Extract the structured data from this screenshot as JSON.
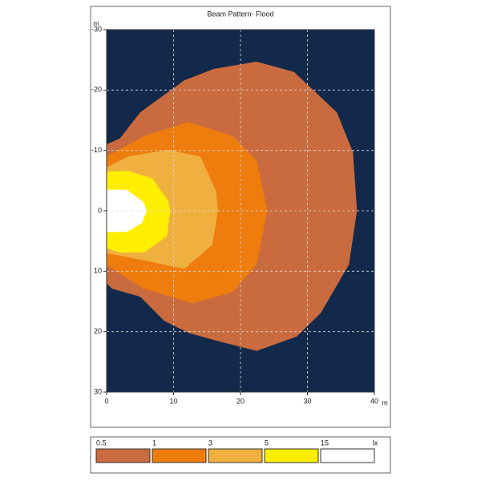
{
  "chart_data": {
    "type": "contour",
    "title": "Beam Pattern- Flood",
    "x_label": "m",
    "y_label": "m",
    "xlim": [
      0,
      40
    ],
    "ylim": [
      30,
      -30
    ],
    "xticks": [
      0,
      10,
      20,
      30,
      40
    ],
    "yticks": [
      -30,
      -20,
      -10,
      0,
      10,
      20,
      30
    ],
    "grid": true,
    "background": "#13294b",
    "legend_unit": "lx",
    "levels": [
      {
        "value": 0.5,
        "color": "#c96b3e",
        "x": [
          0,
          2,
          5,
          11.6,
          16,
          22.4,
          28,
          34.4,
          36.8,
          37.4,
          36.2,
          32,
          28.4,
          22.4,
          16.4,
          12.2,
          8.6,
          5,
          0.8,
          0
        ],
        "y": [
          -11,
          -12,
          -16.3,
          -21.6,
          -23.5,
          -24.7,
          -23,
          -16.3,
          -9.7,
          0,
          8.9,
          16.9,
          20.8,
          23.2,
          21.5,
          20.2,
          18.2,
          14.2,
          12.9,
          12
        ]
      },
      {
        "value": 1,
        "color": "#ee7d0e",
        "x": [
          0,
          5.6,
          12.2,
          18.8,
          22.4,
          24,
          22.4,
          18.8,
          12.8,
          5.6,
          0
        ],
        "y": [
          -9,
          -12.4,
          -14.7,
          -12.4,
          -8.4,
          0,
          8.9,
          13.5,
          15.3,
          12.9,
          9
        ]
      },
      {
        "value": 3,
        "color": "#f0b03f",
        "x": [
          0,
          3.2,
          9.2,
          14,
          16.4,
          16.6,
          15.8,
          11.6,
          5.6,
          0
        ],
        "y": [
          -7.2,
          -9,
          -10.1,
          -9,
          -3.1,
          0,
          5.6,
          9.6,
          8.2,
          7
        ]
      },
      {
        "value": 5,
        "color": "#ffee00",
        "x": [
          0,
          3.2,
          6.8,
          9.2,
          9.5,
          9,
          5.6,
          2,
          0
        ],
        "y": [
          -6.5,
          -6.6,
          -5.4,
          -1.7,
          0,
          4.2,
          6.9,
          6.9,
          6.2
        ]
      },
      {
        "value": 15,
        "color": "#ffffff",
        "x": [
          0,
          3,
          5.5,
          6,
          5.3,
          3,
          0
        ],
        "y": [
          -3.5,
          -3.5,
          -1.5,
          0,
          2,
          3.5,
          3.5
        ]
      }
    ]
  }
}
